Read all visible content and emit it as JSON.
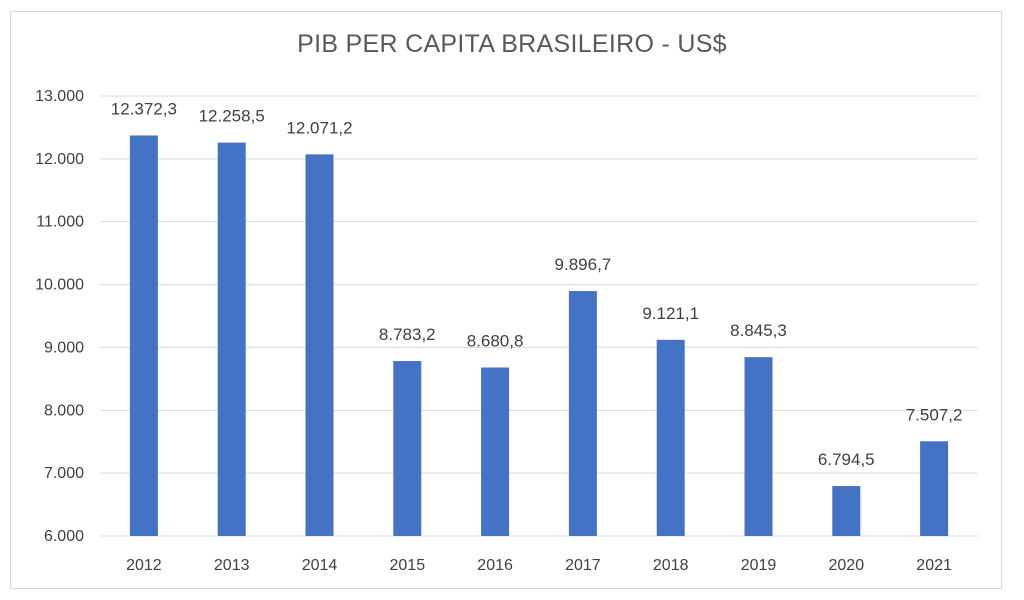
{
  "chart_data": {
    "type": "bar",
    "title": "PIB PER CAPITA BRASILEIRO - US$",
    "categories": [
      "2012",
      "2013",
      "2014",
      "2015",
      "2016",
      "2017",
      "2018",
      "2019",
      "2020",
      "2021"
    ],
    "values": [
      12372.3,
      12258.5,
      12071.2,
      8783.2,
      8680.8,
      9896.7,
      9121.1,
      8845.3,
      6794.5,
      7507.2
    ],
    "data_labels": [
      "12.372,3",
      "12.258,5",
      "12.071,2",
      "8.783,2",
      "8.680,8",
      "9.896,7",
      "9.121,1",
      "8.845,3",
      "6.794,5",
      "7.507,2"
    ],
    "ylim": [
      6000,
      13000
    ],
    "yticks": [
      6000,
      7000,
      8000,
      9000,
      10000,
      11000,
      12000,
      13000
    ],
    "ytick_labels": [
      "6.000",
      "7.000",
      "8.000",
      "9.000",
      "10.000",
      "11.000",
      "12.000",
      "13.000"
    ],
    "xlabel": "",
    "ylabel": "",
    "grid": true,
    "legend": "none",
    "colors": {
      "bar": "#4472c4",
      "grid": "#d9d9d9",
      "text": "#404040",
      "title": "#595959"
    }
  }
}
